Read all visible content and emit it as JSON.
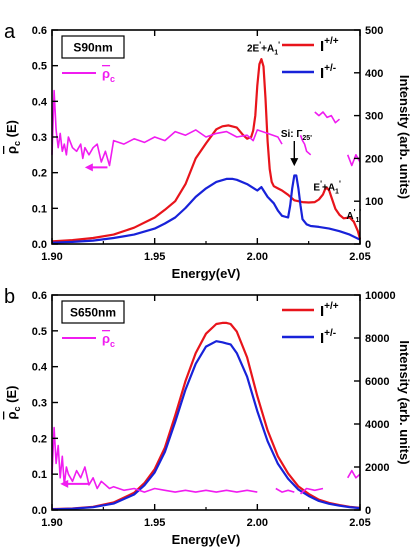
{
  "colors": {
    "red": "#e8141b",
    "blue": "#1822d9",
    "magenta": "#f01cf0",
    "axis": "#000000"
  },
  "chart_data": [
    {
      "type": "line",
      "panel_label": "a",
      "sample_label": "S90nm",
      "xlabel": "Energy(eV)",
      "ylabel_left": {
        "main": "ρ",
        "sub": "c",
        "tail": " (E)"
      },
      "ylabel_right": "Intensity (arb. units)",
      "xlim": [
        1.9,
        2.05
      ],
      "ylim_left": [
        0,
        0.6
      ],
      "ylim_right": [
        0,
        500
      ],
      "x_ticks": [
        "1.90",
        "1.95",
        "2.00",
        "2.05"
      ],
      "y_left_ticks": [
        "0.0",
        "0.1",
        "0.2",
        "0.3",
        "0.4",
        "0.5",
        "0.6"
      ],
      "y_right_ticks": [
        "0",
        "100",
        "200",
        "300",
        "400",
        "500"
      ],
      "legend": [
        {
          "name": "I+/+",
          "base": "I",
          "sup": "+/+",
          "color": "#e8141b"
        },
        {
          "name": "I+/-",
          "base": "I",
          "sup": "+/-",
          "color": "#1822d9"
        }
      ],
      "rho_legend": {
        "main": "ρ",
        "sub": "c"
      },
      "annotations": [
        {
          "text": "2E'+A1'",
          "base": "2E",
          "rest": "+A",
          "sub": "1",
          "x": 2.003,
          "y": 0.54
        },
        {
          "text": "Si: Γ25'",
          "base": "Si: Γ",
          "sub": "25'",
          "x": 2.019,
          "y": 0.3
        },
        {
          "text": "E'+A1'",
          "base": "E",
          "rest": "+A",
          "sub": "1",
          "x": 2.034,
          "y": 0.15
        },
        {
          "text": "A1'",
          "base": "A",
          "rest": "",
          "sub": "1",
          "x": 2.047,
          "y": 0.07
        }
      ],
      "series": [
        {
          "name": "I+/+",
          "axis": "right",
          "color": "#e8141b",
          "x": [
            1.9,
            1.91,
            1.92,
            1.93,
            1.94,
            1.95,
            1.955,
            1.96,
            1.965,
            1.97,
            1.975,
            1.98,
            1.983,
            1.986,
            1.99,
            1.993,
            1.995,
            1.997,
            1.998,
            1.999,
            2.0,
            2.001,
            2.002,
            2.003,
            2.004,
            2.005,
            2.006,
            2.007,
            2.008,
            2.01,
            2.012,
            2.015,
            2.018,
            2.02,
            2.022,
            2.025,
            2.028,
            2.03,
            2.032,
            2.033,
            2.034,
            2.035,
            2.036,
            2.038,
            2.04,
            2.042,
            2.045,
            2.047,
            2.049,
            2.05
          ],
          "y": [
            6,
            9,
            14,
            22,
            38,
            62,
            80,
            100,
            140,
            200,
            235,
            268,
            275,
            277,
            272,
            255,
            246,
            250,
            265,
            300,
            370,
            420,
            432,
            415,
            340,
            240,
            175,
            145,
            135,
            130,
            125,
            115,
            102,
            100,
            98,
            97,
            98,
            104,
            116,
            128,
            131,
            125,
            110,
            82,
            68,
            60,
            62,
            52,
            30,
            12
          ]
        },
        {
          "name": "I+/-",
          "axis": "right",
          "color": "#1822d9",
          "x": [
            1.9,
            1.91,
            1.92,
            1.93,
            1.94,
            1.95,
            1.955,
            1.96,
            1.965,
            1.97,
            1.975,
            1.98,
            1.985,
            1.988,
            1.99,
            1.995,
            2.0,
            2.002,
            2.005,
            2.008,
            2.01,
            2.012,
            2.015,
            2.016,
            2.017,
            2.018,
            2.019,
            2.02,
            2.021,
            2.022,
            2.024,
            2.026,
            2.03,
            2.035,
            2.04,
            2.045,
            2.05
          ],
          "y": [
            3,
            5,
            8,
            14,
            22,
            36,
            48,
            62,
            84,
            110,
            130,
            145,
            152,
            152,
            150,
            140,
            125,
            133,
            110,
            95,
            78,
            66,
            62,
            90,
            130,
            160,
            160,
            130,
            90,
            58,
            46,
            42,
            40,
            36,
            30,
            22,
            10
          ]
        },
        {
          "name": "ρc",
          "axis": "left",
          "color": "#f01cf0",
          "x": [
            1.9,
            1.901,
            1.902,
            1.903,
            1.904,
            1.905,
            1.906,
            1.907,
            1.908,
            1.91,
            1.912,
            1.914,
            1.915,
            1.916,
            1.918,
            1.92,
            1.922,
            1.924,
            1.926,
            1.928,
            1.93,
            1.935,
            1.94,
            1.945,
            1.95,
            1.955,
            1.96,
            1.965,
            1.97,
            1.975,
            1.98,
            1.985,
            1.99,
            1.995,
            1.998,
            2.0,
            2.005,
            2.01,
            2.012,
            null,
            2.021,
            2.022,
            2.023,
            2.024,
            2.026,
            null,
            2.028,
            2.03,
            2.032,
            2.034,
            2.036,
            2.038,
            2.04,
            null,
            2.044,
            2.046,
            2.048,
            2.05
          ],
          "y": [
            0.25,
            0.43,
            0.32,
            0.27,
            0.31,
            0.26,
            0.28,
            0.25,
            0.3,
            0.27,
            0.26,
            0.28,
            0.24,
            0.27,
            0.25,
            0.27,
            0.28,
            0.23,
            0.26,
            0.22,
            0.29,
            0.28,
            0.295,
            0.285,
            0.3,
            0.29,
            0.315,
            0.305,
            0.32,
            0.3,
            0.31,
            0.315,
            0.3,
            0.305,
            0.29,
            0.32,
            0.31,
            0.3,
            0.28,
            null,
            0.305,
            0.29,
            0.28,
            0.26,
            0.25,
            null,
            0.37,
            0.36,
            0.37,
            0.355,
            0.36,
            0.34,
            0.35,
            null,
            0.25,
            0.22,
            0.25,
            0.23
          ]
        }
      ]
    },
    {
      "type": "line",
      "panel_label": "b",
      "sample_label": "S650nm",
      "xlabel": "Energy(eV)",
      "ylabel_left": {
        "main": "ρ",
        "sub": "c",
        "tail": " (E)"
      },
      "ylabel_right": "Intensity (arb. units)",
      "xlim": [
        1.9,
        2.05
      ],
      "ylim_left": [
        0,
        0.6
      ],
      "ylim_right": [
        0,
        10000
      ],
      "x_ticks": [
        "1.90",
        "1.95",
        "2.00",
        "2.05"
      ],
      "y_left_ticks": [
        "0.0",
        "0.1",
        "0.2",
        "0.3",
        "0.4",
        "0.5",
        "0.6"
      ],
      "y_right_ticks": [
        "0",
        "2000",
        "4000",
        "6000",
        "8000",
        "10000"
      ],
      "legend": [
        {
          "name": "I+/+",
          "base": "I",
          "sup": "+/+",
          "color": "#e8141b"
        },
        {
          "name": "I+/-",
          "base": "I",
          "sup": "+/-",
          "color": "#1822d9"
        }
      ],
      "rho_legend": {
        "main": "ρ",
        "sub": "c"
      },
      "annotations": [],
      "series": [
        {
          "name": "I+/+",
          "axis": "right",
          "color": "#e8141b",
          "x": [
            1.9,
            1.91,
            1.92,
            1.93,
            1.94,
            1.945,
            1.95,
            1.955,
            1.96,
            1.965,
            1.97,
            1.975,
            1.98,
            1.983,
            1.985,
            1.987,
            1.99,
            1.995,
            2.0,
            2.005,
            2.01,
            2.015,
            2.02,
            2.025,
            2.03,
            2.035,
            2.04,
            2.045,
            2.05
          ],
          "y": [
            40,
            70,
            150,
            350,
            800,
            1250,
            1900,
            2900,
            4400,
            6000,
            7300,
            8200,
            8650,
            8700,
            8700,
            8650,
            8300,
            7100,
            5300,
            3700,
            2500,
            1700,
            1100,
            750,
            480,
            330,
            230,
            150,
            100
          ]
        },
        {
          "name": "I+/-",
          "axis": "right",
          "color": "#1822d9",
          "x": [
            1.9,
            1.91,
            1.92,
            1.93,
            1.94,
            1.945,
            1.95,
            1.955,
            1.96,
            1.965,
            1.97,
            1.975,
            1.98,
            1.983,
            1.985,
            1.987,
            1.99,
            1.995,
            2.0,
            2.005,
            2.01,
            2.015,
            2.02,
            2.025,
            2.03,
            2.035,
            2.04,
            2.045,
            2.05
          ],
          "y": [
            30,
            60,
            130,
            300,
            720,
            1150,
            1750,
            2700,
            4100,
            5600,
            6800,
            7600,
            7850,
            7800,
            7750,
            7700,
            7300,
            6200,
            4600,
            3200,
            2150,
            1450,
            950,
            650,
            420,
            290,
            200,
            130,
            90
          ]
        },
        {
          "name": "ρc",
          "axis": "left",
          "color": "#f01cf0",
          "x": [
            1.9,
            1.901,
            1.902,
            1.903,
            1.904,
            1.905,
            1.906,
            1.907,
            1.908,
            1.91,
            1.912,
            1.914,
            1.916,
            1.918,
            1.92,
            1.922,
            1.924,
            1.926,
            1.928,
            1.93,
            1.935,
            1.94,
            1.945,
            1.95,
            1.955,
            1.96,
            1.965,
            1.97,
            1.975,
            1.98,
            1.985,
            1.99,
            1.995,
            2.0,
            null,
            2.009,
            2.012,
            2.015,
            2.018,
            null,
            2.021,
            2.024,
            2.028,
            2.032,
            null,
            2.044,
            2.046,
            2.048,
            2.05
          ],
          "y": [
            0.1,
            0.23,
            0.13,
            0.18,
            0.09,
            0.15,
            0.07,
            0.12,
            0.1,
            0.08,
            0.11,
            0.09,
            0.12,
            0.07,
            0.09,
            0.06,
            0.08,
            0.07,
            0.06,
            0.065,
            0.055,
            0.06,
            0.05,
            0.06,
            0.055,
            0.05,
            0.055,
            0.05,
            0.055,
            0.05,
            0.055,
            0.05,
            0.055,
            0.05,
            null,
            0.06,
            0.05,
            0.055,
            0.05,
            null,
            0.045,
            0.06,
            0.055,
            0.06,
            null,
            0.09,
            0.11,
            0.09,
            0.1
          ]
        }
      ]
    }
  ]
}
